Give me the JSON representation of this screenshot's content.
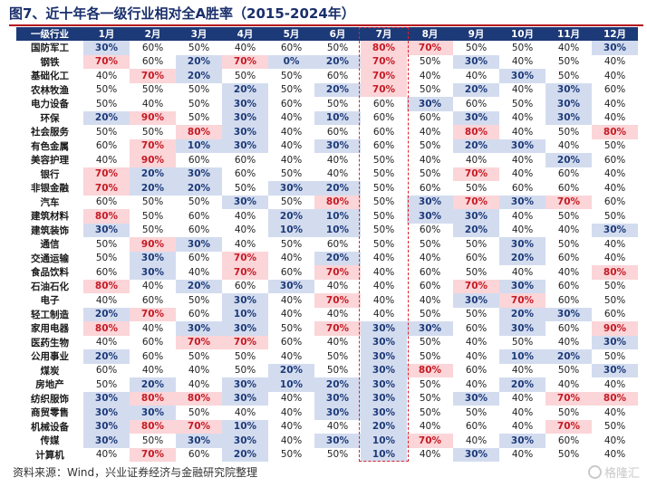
{
  "title": "图7、近十年各一级行业相对全A胜率（2015-2024年）",
  "source": "资料来源：Wind，兴业证券经济与金融研究院整理",
  "watermark": "格隆汇",
  "colors": {
    "header": "#1d3a78",
    "high": "#fbd5d8",
    "high_text": "#c51a24",
    "low": "#d3dcef",
    "low_text": "#1d3a78",
    "highlight_border": "#d9232d"
  },
  "chart_data": {
    "type": "table",
    "highlighted_column": "7月",
    "high_values": [
      "70%",
      "80%",
      "90%"
    ],
    "low_values": [
      "0%",
      "10%",
      "20%",
      "30%"
    ],
    "columns": [
      "一级行业",
      "1月",
      "2月",
      "3月",
      "4月",
      "5月",
      "6月",
      "7月",
      "8月",
      "9月",
      "10月",
      "11月",
      "12月"
    ],
    "rows": [
      {
        "industry": "国防军工",
        "values": [
          "30%",
          "60%",
          "50%",
          "40%",
          "60%",
          "50%",
          "80%",
          "70%",
          "50%",
          "50%",
          "40%",
          "30%"
        ]
      },
      {
        "industry": "钢铁",
        "values": [
          "70%",
          "60%",
          "20%",
          "70%",
          "0%",
          "20%",
          "70%",
          "50%",
          "30%",
          "40%",
          "50%",
          "40%"
        ]
      },
      {
        "industry": "基础化工",
        "values": [
          "40%",
          "70%",
          "20%",
          "50%",
          "50%",
          "60%",
          "70%",
          "40%",
          "40%",
          "30%",
          "50%",
          "40%"
        ]
      },
      {
        "industry": "农林牧渔",
        "values": [
          "50%",
          "50%",
          "50%",
          "20%",
          "50%",
          "20%",
          "70%",
          "50%",
          "20%",
          "40%",
          "30%",
          "60%"
        ]
      },
      {
        "industry": "电力设备",
        "values": [
          "50%",
          "40%",
          "50%",
          "30%",
          "60%",
          "50%",
          "60%",
          "30%",
          "60%",
          "50%",
          "30%",
          "40%"
        ]
      },
      {
        "industry": "环保",
        "values": [
          "20%",
          "90%",
          "50%",
          "30%",
          "40%",
          "10%",
          "60%",
          "60%",
          "30%",
          "40%",
          "30%",
          "40%"
        ]
      },
      {
        "industry": "社会服务",
        "values": [
          "50%",
          "50%",
          "80%",
          "30%",
          "40%",
          "60%",
          "60%",
          "40%",
          "80%",
          "40%",
          "50%",
          "80%"
        ]
      },
      {
        "industry": "有色金属",
        "values": [
          "60%",
          "70%",
          "10%",
          "30%",
          "40%",
          "30%",
          "60%",
          "50%",
          "20%",
          "30%",
          "40%",
          "50%"
        ]
      },
      {
        "industry": "美容护理",
        "values": [
          "40%",
          "90%",
          "60%",
          "60%",
          "40%",
          "40%",
          "50%",
          "40%",
          "40%",
          "40%",
          "20%",
          "60%"
        ]
      },
      {
        "industry": "银行",
        "values": [
          "70%",
          "20%",
          "30%",
          "60%",
          "50%",
          "40%",
          "50%",
          "50%",
          "70%",
          "40%",
          "60%",
          "40%"
        ]
      },
      {
        "industry": "非银金融",
        "values": [
          "70%",
          "20%",
          "20%",
          "50%",
          "30%",
          "20%",
          "50%",
          "60%",
          "50%",
          "60%",
          "60%",
          "40%"
        ]
      },
      {
        "industry": "汽车",
        "values": [
          "60%",
          "50%",
          "50%",
          "30%",
          "50%",
          "80%",
          "50%",
          "30%",
          "70%",
          "30%",
          "70%",
          "60%"
        ]
      },
      {
        "industry": "建筑材料",
        "values": [
          "80%",
          "50%",
          "60%",
          "40%",
          "20%",
          "10%",
          "50%",
          "30%",
          "30%",
          "40%",
          "50%",
          "50%"
        ]
      },
      {
        "industry": "建筑装饰",
        "values": [
          "30%",
          "50%",
          "60%",
          "40%",
          "10%",
          "10%",
          "50%",
          "60%",
          "20%",
          "40%",
          "40%",
          "30%"
        ]
      },
      {
        "industry": "通信",
        "values": [
          "50%",
          "90%",
          "30%",
          "40%",
          "50%",
          "60%",
          "50%",
          "50%",
          "50%",
          "30%",
          "50%",
          "40%"
        ]
      },
      {
        "industry": "交通运输",
        "values": [
          "50%",
          "30%",
          "60%",
          "70%",
          "40%",
          "20%",
          "40%",
          "40%",
          "60%",
          "20%",
          "60%",
          "40%"
        ]
      },
      {
        "industry": "食品饮料",
        "values": [
          "60%",
          "30%",
          "40%",
          "70%",
          "60%",
          "70%",
          "40%",
          "60%",
          "50%",
          "40%",
          "40%",
          "80%"
        ]
      },
      {
        "industry": "石油石化",
        "values": [
          "80%",
          "40%",
          "20%",
          "60%",
          "30%",
          "40%",
          "40%",
          "60%",
          "70%",
          "30%",
          "60%",
          "50%"
        ]
      },
      {
        "industry": "电子",
        "values": [
          "40%",
          "60%",
          "50%",
          "30%",
          "40%",
          "70%",
          "40%",
          "40%",
          "30%",
          "70%",
          "60%",
          "50%"
        ]
      },
      {
        "industry": "轻工制造",
        "values": [
          "20%",
          "70%",
          "60%",
          "10%",
          "40%",
          "40%",
          "40%",
          "50%",
          "50%",
          "20%",
          "30%",
          "60%"
        ]
      },
      {
        "industry": "家用电器",
        "values": [
          "80%",
          "40%",
          "30%",
          "30%",
          "50%",
          "70%",
          "30%",
          "30%",
          "60%",
          "30%",
          "60%",
          "90%"
        ]
      },
      {
        "industry": "医药生物",
        "values": [
          "40%",
          "60%",
          "70%",
          "70%",
          "60%",
          "40%",
          "30%",
          "50%",
          "40%",
          "50%",
          "40%",
          "30%"
        ]
      },
      {
        "industry": "公用事业",
        "values": [
          "20%",
          "60%",
          "50%",
          "50%",
          "40%",
          "50%",
          "30%",
          "50%",
          "40%",
          "10%",
          "20%",
          "50%"
        ]
      },
      {
        "industry": "煤炭",
        "values": [
          "60%",
          "40%",
          "40%",
          "50%",
          "20%",
          "50%",
          "30%",
          "80%",
          "60%",
          "40%",
          "50%",
          "30%"
        ]
      },
      {
        "industry": "房地产",
        "values": [
          "50%",
          "20%",
          "40%",
          "30%",
          "10%",
          "20%",
          "30%",
          "50%",
          "40%",
          "20%",
          "40%",
          "40%"
        ]
      },
      {
        "industry": "纺织服饰",
        "values": [
          "30%",
          "80%",
          "80%",
          "30%",
          "40%",
          "30%",
          "30%",
          "50%",
          "30%",
          "40%",
          "70%",
          "80%"
        ]
      },
      {
        "industry": "商贸零售",
        "values": [
          "30%",
          "30%",
          "50%",
          "40%",
          "40%",
          "30%",
          "30%",
          "50%",
          "50%",
          "40%",
          "50%",
          "40%"
        ]
      },
      {
        "industry": "机械设备",
        "values": [
          "30%",
          "80%",
          "70%",
          "10%",
          "40%",
          "40%",
          "20%",
          "40%",
          "60%",
          "40%",
          "70%",
          "50%"
        ]
      },
      {
        "industry": "传媒",
        "values": [
          "30%",
          "50%",
          "30%",
          "30%",
          "40%",
          "30%",
          "10%",
          "70%",
          "40%",
          "30%",
          "60%",
          "40%"
        ]
      },
      {
        "industry": "计算机",
        "values": [
          "40%",
          "70%",
          "60%",
          "20%",
          "50%",
          "50%",
          "10%",
          "40%",
          "30%",
          "40%",
          "50%",
          "40%"
        ]
      }
    ]
  }
}
